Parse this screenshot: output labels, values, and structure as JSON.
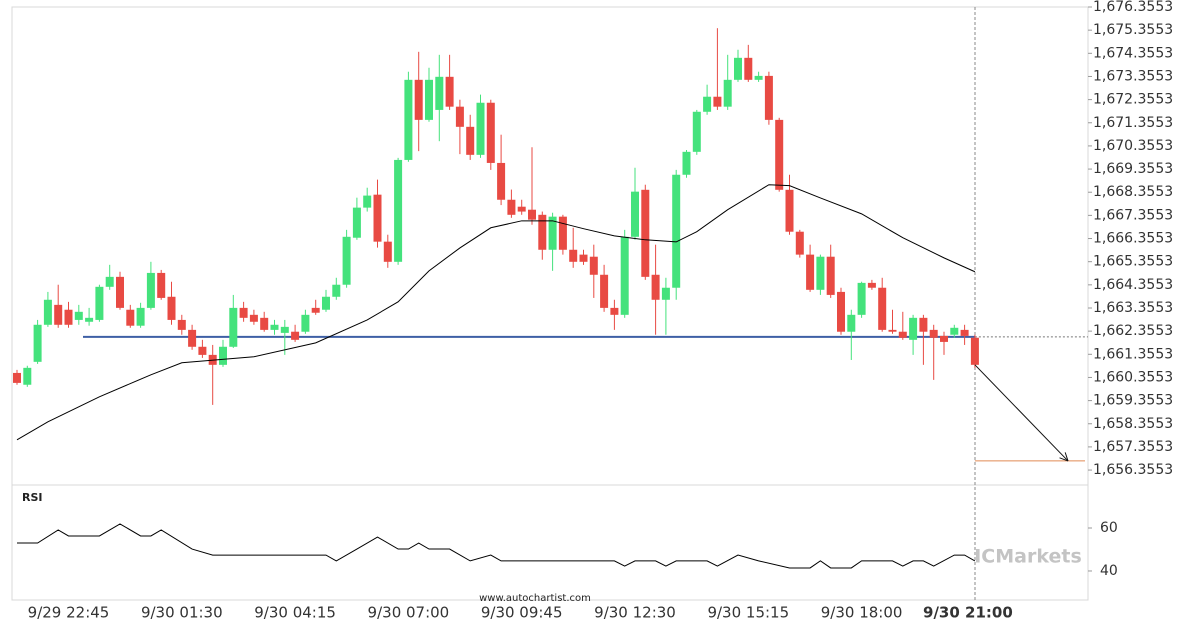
{
  "chart_data": {
    "type": "candlestick",
    "categories": [
      null,
      null,
      null,
      null,
      null,
      "9/29 22:45",
      null,
      null,
      null,
      null,
      null,
      null,
      null,
      null,
      null,
      null,
      "9/30 01:30",
      null,
      null,
      null,
      null,
      null,
      null,
      null,
      null,
      null,
      null,
      "9/30 04:15",
      null,
      null,
      null,
      null,
      null,
      null,
      null,
      null,
      null,
      null,
      "9/30 07:00",
      null,
      null,
      null,
      null,
      null,
      null,
      null,
      null,
      null,
      null,
      "9/30 09:45",
      null,
      null,
      null,
      null,
      null,
      null,
      null,
      null,
      null,
      null,
      "9/30 12:30",
      null,
      null,
      null,
      null,
      null,
      null,
      null,
      null,
      null,
      null,
      "9/30 15:15",
      null,
      null,
      null,
      null,
      null,
      null,
      null,
      null,
      null,
      null,
      "9/30 18:00",
      null,
      null,
      null,
      null,
      null,
      null,
      null,
      null,
      null,
      null,
      "9/30 21:00"
    ],
    "open": [
      1660.55,
      1660.04,
      1661.03,
      1662.63,
      1663.49,
      1663.28,
      1662.84,
      1662.76,
      1662.84,
      1664.27,
      1664.7,
      1663.28,
      1662.59,
      1663.36,
      1664.87,
      1663.84,
      1662.84,
      1662.41,
      1661.68,
      1661.33,
      1660.9,
      1661.68,
      1663.36,
      1663.06,
      1662.93,
      1662.41,
      1662.28,
      1662.33,
      1662.33,
      1663.36,
      1663.28,
      1663.84,
      1664.36,
      1666.39,
      1667.69,
      1668.25,
      1666.22,
      1665.35,
      1669.75,
      1673.21,
      1671.48,
      1671.91,
      1673.34,
      1672.05,
      1671.18,
      1669.97,
      1672.22,
      1669.62,
      1668.03,
      1667.73,
      1667.6,
      1667.38,
      1665.87,
      1667.3,
      1665.87,
      1665.66,
      1665.57,
      1664.79,
      1663.36,
      1663.06,
      1666.43,
      1668.46,
      1664.79,
      1663.71,
      1664.23,
      1669.11,
      1670.1,
      1671.83,
      1672.48,
      1672.05,
      1673.21,
      1674.16,
      1673.21,
      1673.38,
      1671.48,
      1668.46,
      1666.65,
      1665.66,
      1664.14,
      1665.57,
      1664.05,
      1662.33,
      1663.06,
      1664.44,
      1664.23,
      1662.41,
      1662.33,
      1661.98,
      1662.93,
      1662.41,
      1662.15,
      1662.2,
      1662.41,
      1662.07
    ],
    "high": [
      1660.68,
      1660.86,
      1662.84,
      1664.05,
      1664.36,
      1663.62,
      1663.49,
      1663.36,
      1664.36,
      1665.22,
      1664.92,
      1663.49,
      1663.58,
      1665.35,
      1665.0,
      1664.49,
      1663.06,
      1662.63,
      1661.98,
      1661.76,
      1661.98,
      1663.92,
      1663.62,
      1663.28,
      1663.19,
      1662.84,
      1662.84,
      1662.63,
      1663.28,
      1663.71,
      1664.14,
      1664.66,
      1666.73,
      1668.12,
      1668.55,
      1668.9,
      1666.52,
      1669.84,
      1673.56,
      1674.42,
      1673.73,
      1674.29,
      1674.29,
      1672.35,
      1671.7,
      1672.57,
      1672.35,
      1670.84,
      1668.47,
      1668.03,
      1670.3,
      1667.52,
      1667.47,
      1667.38,
      1666.82,
      1665.87,
      1666.09,
      1665.22,
      1663.71,
      1666.73,
      1669.41,
      1668.68,
      1666.09,
      1664.66,
      1669.32,
      1670.18,
      1671.91,
      1673.0,
      1675.44,
      1674.29,
      1674.51,
      1674.72,
      1673.56,
      1673.56,
      1671.57,
      1669.11,
      1666.73,
      1666.09,
      1665.66,
      1666.09,
      1664.23,
      1663.28,
      1664.49,
      1664.57,
      1664.66,
      1663.28,
      1663.19,
      1663.06,
      1663.06,
      1662.63,
      1662.33,
      1662.63,
      1662.63,
      1662.2
    ],
    "low": [
      1660.04,
      1659.95,
      1660.94,
      1662.54,
      1662.5,
      1662.5,
      1662.63,
      1662.59,
      1662.76,
      1664.14,
      1663.28,
      1662.5,
      1662.5,
      1663.28,
      1663.71,
      1662.63,
      1662.2,
      1661.55,
      1661.2,
      1659.17,
      1660.81,
      1661.63,
      1662.76,
      1662.63,
      1662.33,
      1662.2,
      1661.33,
      1661.89,
      1662.24,
      1663.06,
      1663.19,
      1663.71,
      1664.23,
      1666.3,
      1667.52,
      1665.96,
      1665.09,
      1665.22,
      1669.67,
      1670.13,
      1671.4,
      1670.56,
      1671.91,
      1670.0,
      1669.75,
      1669.84,
      1669.32,
      1667.8,
      1667.25,
      1667.38,
      1666.95,
      1665.44,
      1664.96,
      1665.66,
      1665.09,
      1665.22,
      1663.79,
      1663.19,
      1662.41,
      1662.93,
      1666.3,
      1664.57,
      1662.2,
      1662.2,
      1663.71,
      1668.98,
      1669.97,
      1671.7,
      1671.91,
      1671.91,
      1673.12,
      1673.12,
      1673.12,
      1671.27,
      1668.38,
      1666.52,
      1665.53,
      1664.05,
      1663.92,
      1663.79,
      1662.2,
      1661.11,
      1662.93,
      1664.14,
      1662.33,
      1662.24,
      1661.98,
      1661.33,
      1660.9,
      1660.25,
      1661.33,
      1662.07,
      1661.76,
      1660.77
    ],
    "close": [
      1660.12,
      1660.77,
      1662.63,
      1663.71,
      1662.63,
      1662.63,
      1663.19,
      1662.93,
      1664.27,
      1664.7,
      1663.36,
      1662.59,
      1663.36,
      1664.87,
      1663.79,
      1662.84,
      1662.41,
      1661.68,
      1661.33,
      1660.9,
      1661.68,
      1663.36,
      1662.93,
      1662.76,
      1662.41,
      1662.63,
      1662.54,
      1661.98,
      1663.06,
      1663.15,
      1663.84,
      1664.36,
      1666.43,
      1667.69,
      1668.21,
      1666.22,
      1665.35,
      1669.75,
      1673.21,
      1671.48,
      1673.21,
      1673.34,
      1672.05,
      1671.18,
      1669.97,
      1672.22,
      1669.62,
      1668.03,
      1667.38,
      1667.52,
      1667.17,
      1665.87,
      1667.3,
      1665.87,
      1665.35,
      1665.35,
      1664.79,
      1663.36,
      1663.06,
      1666.43,
      1668.38,
      1664.7,
      1663.71,
      1664.23,
      1669.11,
      1670.1,
      1671.83,
      1672.48,
      1672.05,
      1673.21,
      1674.16,
      1673.21,
      1673.38,
      1671.48,
      1668.46,
      1666.65,
      1665.66,
      1664.14,
      1665.57,
      1663.92,
      1662.33,
      1663.06,
      1664.44,
      1664.23,
      1662.41,
      1662.33,
      1662.07,
      1662.93,
      1662.33,
      1662.07,
      1661.89,
      1662.5,
      1662.15,
      1660.9
    ],
    "up_color": "#44e27c",
    "down_color": "#e84a43",
    "moving_average": {
      "color": "#000000",
      "x": [
        0,
        3,
        8,
        13,
        16,
        23,
        29,
        34,
        37,
        40,
        43,
        46,
        49,
        52,
        55,
        58,
        61,
        64,
        66,
        69,
        73,
        75,
        78,
        82,
        86,
        90,
        93
      ],
      "values": [
        1657.66,
        1658.44,
        1659.52,
        1660.47,
        1660.99,
        1661.25,
        1661.85,
        1662.84,
        1663.62,
        1664.96,
        1665.95,
        1666.82,
        1667.12,
        1667.12,
        1666.78,
        1666.47,
        1666.3,
        1666.21,
        1666.65,
        1667.6,
        1668.68,
        1668.64,
        1668.11,
        1667.42,
        1666.39,
        1665.52,
        1664.92
      ]
    },
    "support_level": 1662.11,
    "support_color": "#3e5fa5",
    "target_level": 1656.75,
    "target_color": "#e08a55",
    "ylim": [
      1655.71,
      1676.3553
    ],
    "yticks": [
      {
        "value": 1676.3553,
        "label": "1,676.3553"
      },
      {
        "value": 1675.3553,
        "label": "1,675.3553"
      },
      {
        "value": 1674.3553,
        "label": "1,674.3553"
      },
      {
        "value": 1673.3553,
        "label": "1,673.3553"
      },
      {
        "value": 1672.3553,
        "label": "1,672.3553"
      },
      {
        "value": 1671.3553,
        "label": "1,671.3553"
      },
      {
        "value": 1670.3553,
        "label": "1,670.3553"
      },
      {
        "value": 1669.3553,
        "label": "1,669.3553"
      },
      {
        "value": 1668.3553,
        "label": "1,668.3553"
      },
      {
        "value": 1667.3553,
        "label": "1,667.3553"
      },
      {
        "value": 1666.3553,
        "label": "1,666.3553"
      },
      {
        "value": 1665.3553,
        "label": "1,665.3553"
      },
      {
        "value": 1664.3553,
        "label": "1,664.3553"
      },
      {
        "value": 1663.3553,
        "label": "1,663.3553"
      },
      {
        "value": 1662.3553,
        "label": "1,662.3553"
      },
      {
        "value": 1661.3553,
        "label": "1,661.3553"
      },
      {
        "value": 1660.3553,
        "label": "1,660.3553"
      },
      {
        "value": 1659.3553,
        "label": "1,659.3553"
      },
      {
        "value": 1658.3553,
        "label": "1,658.3553"
      },
      {
        "value": 1657.3553,
        "label": "1,657.3553"
      },
      {
        "value": 1656.3553,
        "label": "1,656.3553"
      }
    ],
    "indicator": {
      "type": "line",
      "title": "RSI",
      "color": "#000000",
      "x": [
        0,
        2,
        4,
        5,
        8,
        10,
        12,
        13,
        14,
        17,
        19,
        30,
        31,
        33,
        35,
        37,
        38,
        39,
        40,
        42,
        44,
        46,
        47,
        58,
        59,
        60,
        62,
        63,
        64,
        67,
        68,
        70,
        72,
        75,
        77,
        78,
        79,
        81,
        82,
        85,
        86,
        87,
        88,
        89,
        91,
        92,
        93
      ],
      "values": [
        53.0,
        53.0,
        59.1,
        56.3,
        56.3,
        61.9,
        56.3,
        56.3,
        59.1,
        50.2,
        47.4,
        47.4,
        44.7,
        50.2,
        55.8,
        50.2,
        50.2,
        53.0,
        50.2,
        50.2,
        44.7,
        47.4,
        44.7,
        44.7,
        42.3,
        44.7,
        44.7,
        42.3,
        44.7,
        44.7,
        42.3,
        47.4,
        44.7,
        41.4,
        41.4,
        44.7,
        41.4,
        41.4,
        44.7,
        44.7,
        42.3,
        44.7,
        44.7,
        42.3,
        47.4,
        47.4,
        44.7
      ],
      "ylim": [
        26.5,
        80
      ],
      "yticks": [
        40,
        60
      ]
    },
    "source": "www.autochartist.com",
    "watermark": "ICMarkets"
  }
}
